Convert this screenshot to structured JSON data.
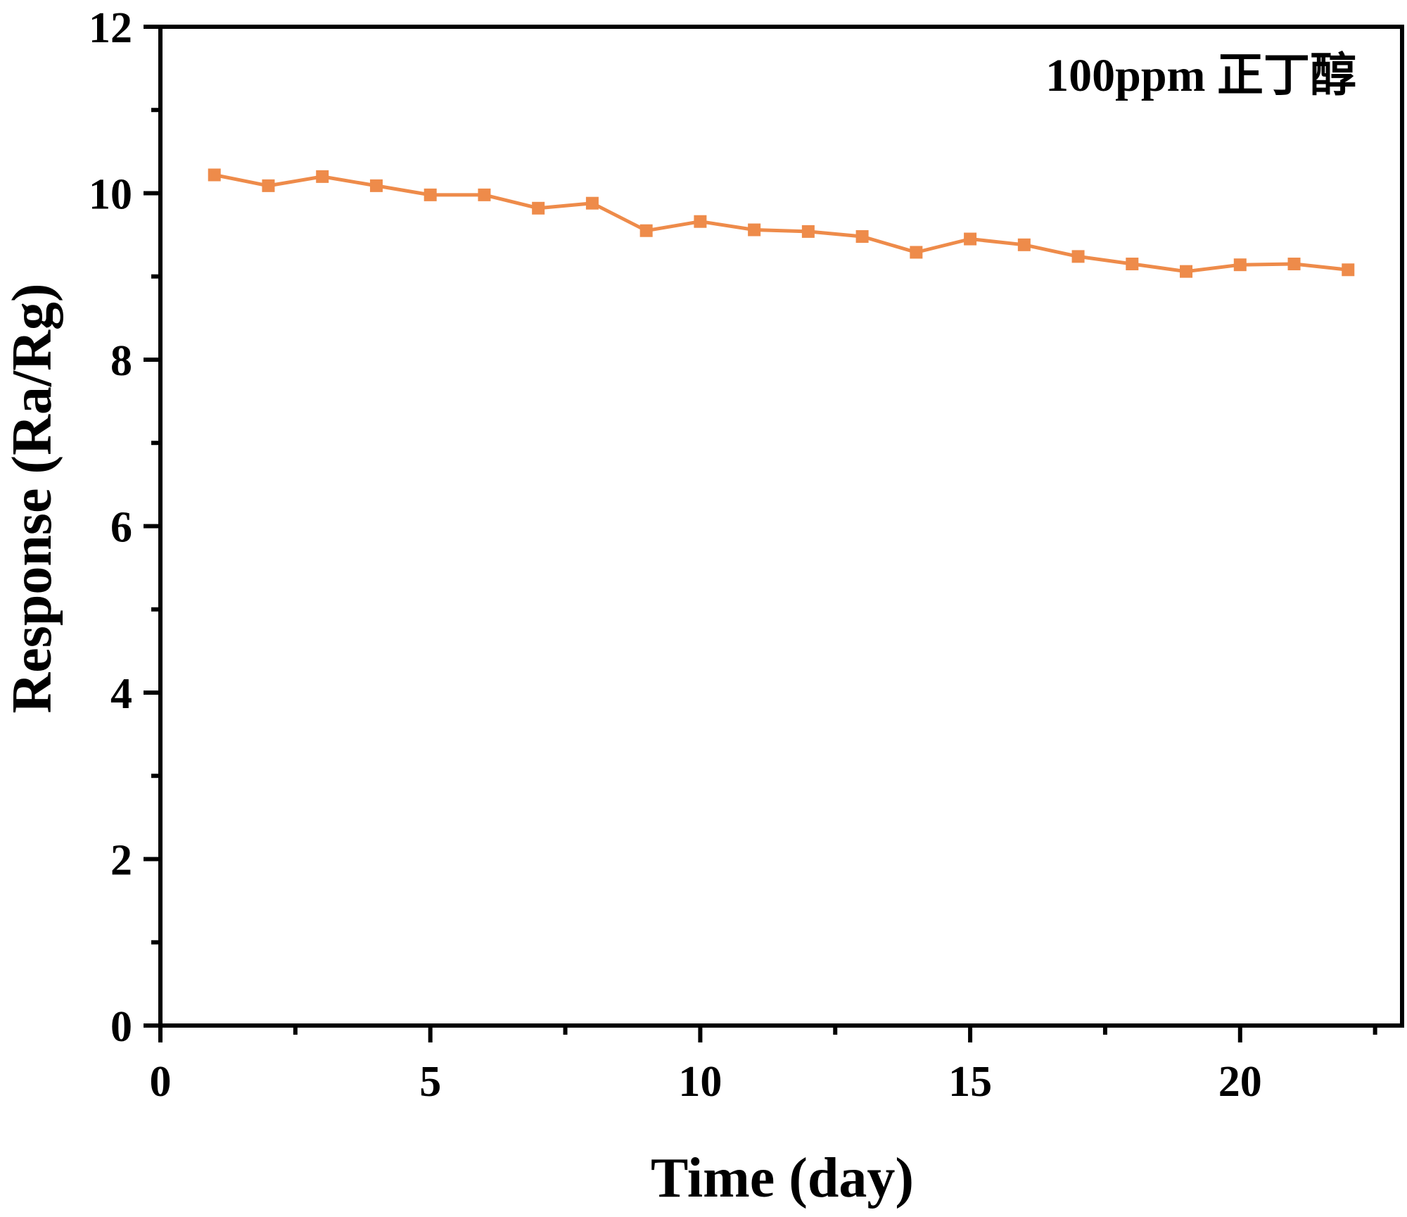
{
  "chart_data": {
    "type": "line",
    "title": "",
    "annotation": "100ppm 正丁醇",
    "xlabel": "Time (day)",
    "ylabel": "Response (Ra/Rg)",
    "xlim": [
      0,
      23
    ],
    "ylim": [
      0,
      12
    ],
    "x_ticks": [
      "0",
      "5",
      "10",
      "15",
      "20"
    ],
    "y_ticks": [
      "0",
      "2",
      "4",
      "6",
      "8",
      "10",
      "12"
    ],
    "line_color": "#EE8B4A",
    "axis_color": "#000000",
    "series": [
      {
        "name": "100ppm 正丁醇",
        "x": [
          1,
          2,
          3,
          4,
          5,
          6,
          7,
          8,
          9,
          10,
          11,
          12,
          13,
          14,
          15,
          16,
          17,
          18,
          19,
          20,
          21,
          22
        ],
        "y": [
          10.22,
          10.09,
          10.2,
          10.09,
          9.98,
          9.98,
          9.82,
          9.88,
          9.55,
          9.66,
          9.56,
          9.54,
          9.48,
          9.29,
          9.45,
          9.38,
          9.24,
          9.15,
          9.06,
          9.14,
          9.15,
          9.08
        ]
      }
    ]
  }
}
